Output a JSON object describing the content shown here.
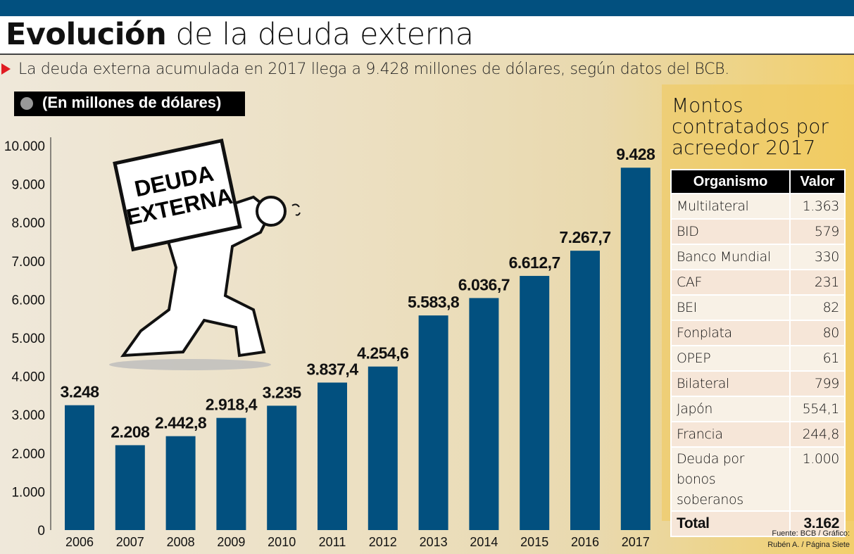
{
  "header": {
    "title_bold": "Evolución",
    "title_rest": "de la deuda externa",
    "subtitle": "La deuda externa acumulada en 2017 llega a 9.428 millones de dólares, según datos del BCB."
  },
  "colors": {
    "bar": "#02507f",
    "topbar": "#02507f",
    "bullet": "#e01b22"
  },
  "illustration": {
    "icon": "man-carrying-box",
    "sign_line1": "DEUDA",
    "sign_line2": "EXTERNA"
  },
  "chart_data": {
    "type": "bar",
    "unit_label": "(En millones de dólares)",
    "categories": [
      "2006",
      "2007",
      "2008",
      "2009",
      "2010",
      "2011",
      "2012",
      "2013",
      "2014",
      "2015",
      "2016",
      "2017"
    ],
    "values": [
      3248,
      2208,
      2442.8,
      2918.4,
      3235,
      3837.4,
      4254.6,
      5583.8,
      6036.7,
      6612.7,
      7267.7,
      9428
    ],
    "data_labels": [
      "3.248",
      "2.208",
      "2.442,8",
      "2.918,4",
      "3.235",
      "3.837,4",
      "4.254,6",
      "5.583,8",
      "6.036,7",
      "6.612,7",
      "7.267,7",
      "9.428"
    ],
    "ylim": [
      0,
      10000
    ],
    "yticks": [
      "0",
      "1.000",
      "2.000",
      "3.000",
      "4.000",
      "5.000",
      "6.000",
      "7.000",
      "8.000",
      "9.000",
      "10.000"
    ],
    "grid": false
  },
  "table": {
    "title": "Montos contratados por acreedor 2017",
    "headers": [
      "Organismo",
      "Valor"
    ],
    "rows": [
      [
        "Multilateral",
        "1.363"
      ],
      [
        "BID",
        "579"
      ],
      [
        "Banco Mundial",
        "330"
      ],
      [
        "CAF",
        "231"
      ],
      [
        "BEI",
        "82"
      ],
      [
        "Fonplata",
        "80"
      ],
      [
        "OPEP",
        "61"
      ],
      [
        "Bilateral",
        "799"
      ],
      [
        "Japón",
        "554,1"
      ],
      [
        "Francia",
        "244,8"
      ]
    ],
    "bonos_line1": "Deuda por bonos",
    "bonos_line2": "soberanos",
    "bonos_value": "1.000",
    "total_label": "Total",
    "total_value": "3.162"
  },
  "source": {
    "line1": "Fuente: BCB / Gráfico:",
    "line2": "Rubén A. / Página Siete"
  }
}
